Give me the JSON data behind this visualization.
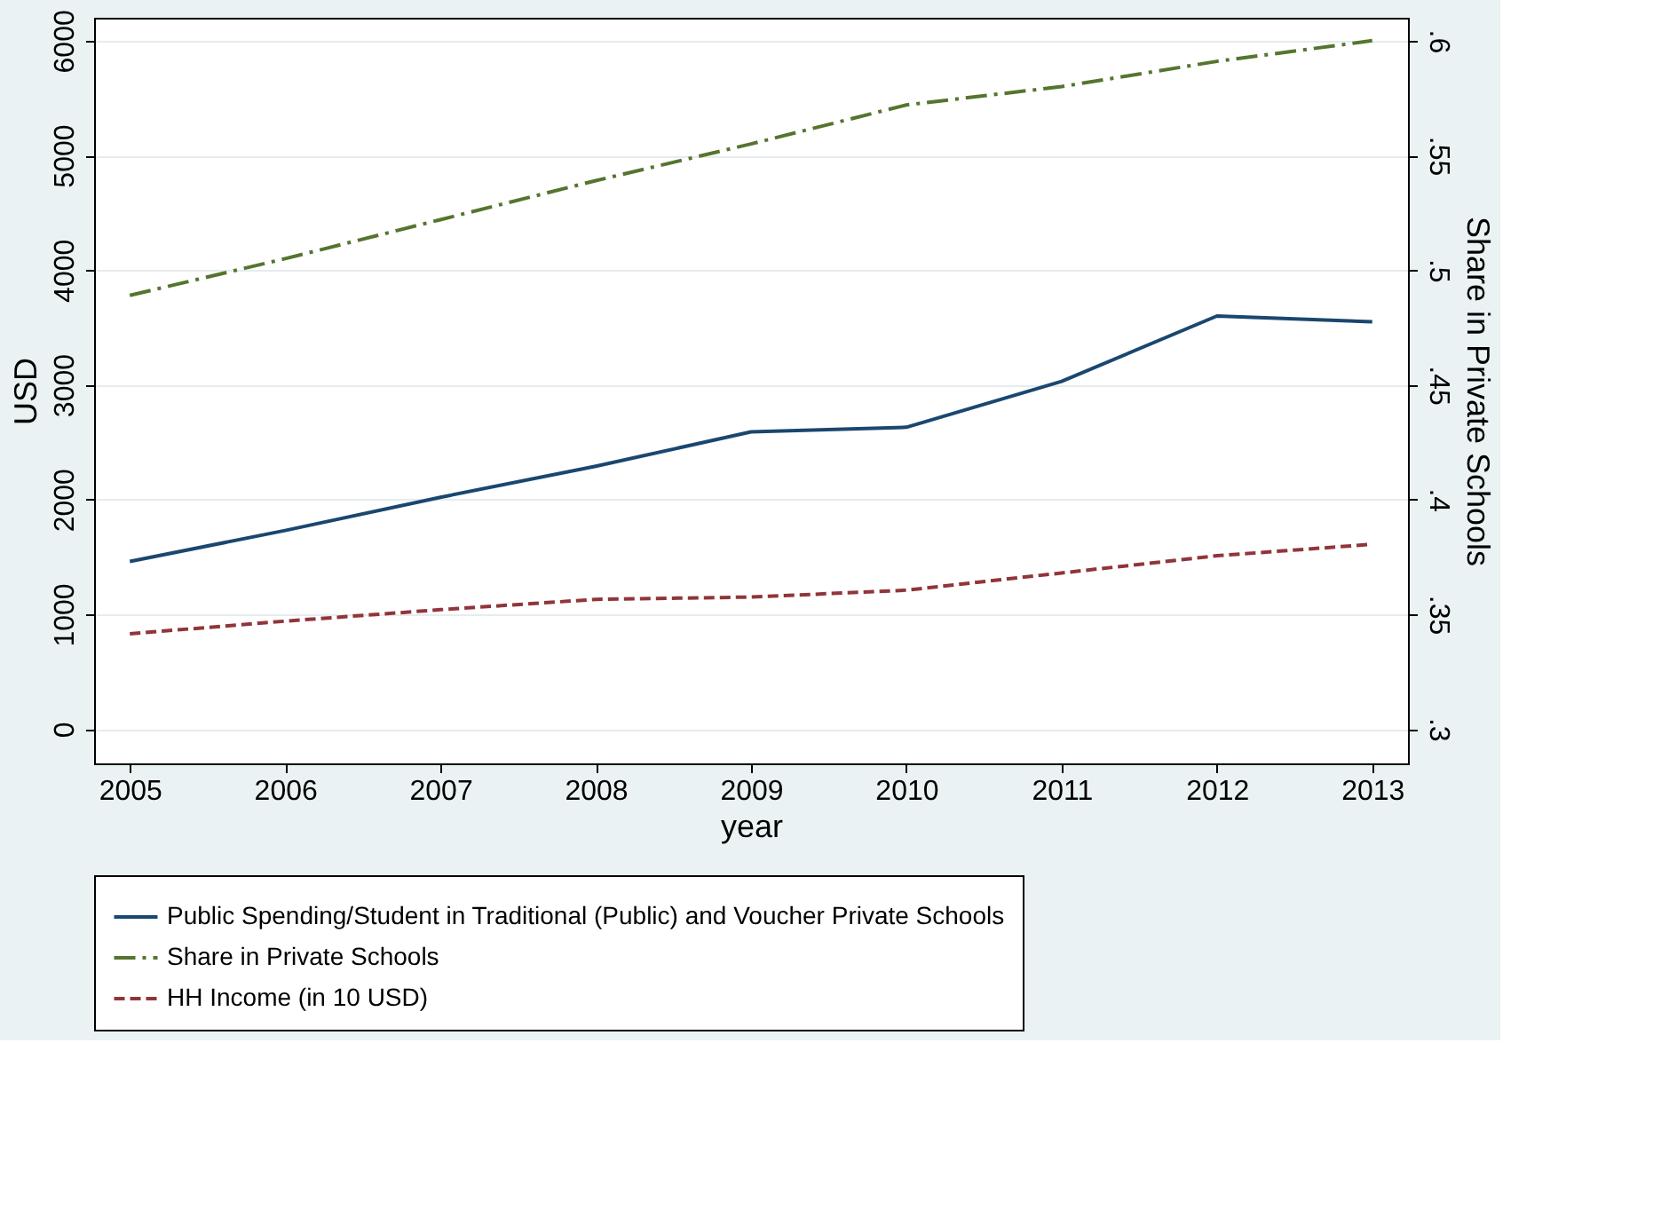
{
  "chart_data": {
    "type": "line",
    "xlabel": "year",
    "ylabel": "USD",
    "y2label": "Share in Private Schools",
    "x": [
      2005,
      2006,
      2007,
      2008,
      2009,
      2010,
      2011,
      2012,
      2013
    ],
    "series": [
      {
        "name": "Public Spending/Student in Traditional (Public) and Voucher Private Schools",
        "color": "#1a476f",
        "line_style": "solid",
        "values": [
          1460,
          1730,
          2020,
          2290,
          2590,
          2630,
          3030,
          3600,
          3550
        ]
      },
      {
        "name": "Share in Private Schools",
        "color": "#55752f",
        "line_style": "dashdot",
        "axis": "y2",
        "values": [
          0.489,
          0.505,
          0.522,
          0.539,
          0.555,
          0.572,
          0.58,
          0.591,
          0.6
        ]
      },
      {
        "name": "HH Income (in 10 USD)",
        "color": "#90353b",
        "line_style": "dashed",
        "values": [
          830,
          940,
          1040,
          1130,
          1150,
          1210,
          1360,
          1510,
          1610
        ]
      }
    ],
    "xlim": [
      2004.77,
      2013.23
    ],
    "xticks": [
      2005,
      2006,
      2007,
      2008,
      2009,
      2010,
      2011,
      2012,
      2013
    ],
    "ylim": [
      -300,
      6200
    ],
    "yticks": [
      0,
      1000,
      2000,
      3000,
      4000,
      5000,
      6000
    ],
    "y2lim": [
      0.285,
      0.61
    ],
    "y2ticks": [
      {
        "value": 0.3,
        "label": ".3"
      },
      {
        "value": 0.35,
        "label": ".35"
      },
      {
        "value": 0.4,
        "label": ".4"
      },
      {
        "value": 0.45,
        "label": ".45"
      },
      {
        "value": 0.5,
        "label": ".5"
      },
      {
        "value": 0.55,
        "label": ".55"
      },
      {
        "value": 0.6,
        "label": ".6"
      }
    ],
    "grid": "y",
    "legend": "bottom",
    "marker": "none"
  }
}
